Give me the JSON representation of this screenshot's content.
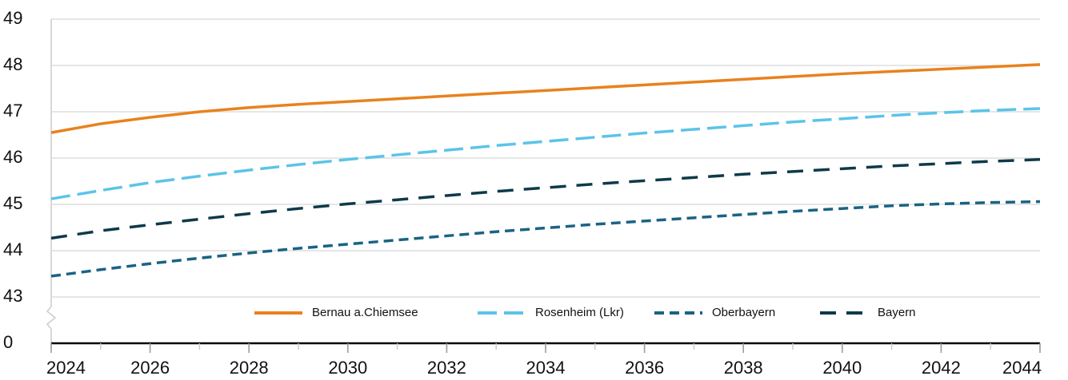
{
  "chart_data": {
    "type": "line",
    "x": [
      2024,
      2025,
      2026,
      2027,
      2028,
      2029,
      2030,
      2031,
      2032,
      2033,
      2034,
      2035,
      2036,
      2037,
      2038,
      2039,
      2040,
      2041,
      2042,
      2043,
      2044
    ],
    "series": [
      {
        "name": "Bernau a.Chiemsee",
        "color": "#e8821e",
        "dash": "solid",
        "values": [
          46.55,
          46.74,
          46.88,
          47.0,
          47.09,
          47.16,
          47.22,
          47.28,
          47.34,
          47.4,
          47.46,
          47.52,
          47.58,
          47.64,
          47.7,
          47.76,
          47.82,
          47.87,
          47.92,
          47.97,
          48.02
        ]
      },
      {
        "name": "Rosenheim (Lkr)",
        "color": "#5bc4e8",
        "dash": "long",
        "values": [
          45.12,
          45.3,
          45.47,
          45.61,
          45.74,
          45.86,
          45.97,
          46.07,
          46.17,
          46.27,
          46.36,
          46.45,
          46.54,
          46.62,
          46.7,
          46.78,
          46.85,
          46.92,
          46.98,
          47.03,
          47.07
        ]
      },
      {
        "name": "Oberbayern",
        "color": "#1a6384",
        "dash": "short",
        "values": [
          43.45,
          43.59,
          43.72,
          43.84,
          43.95,
          44.05,
          44.14,
          44.23,
          44.32,
          44.41,
          44.49,
          44.57,
          44.64,
          44.71,
          44.78,
          44.85,
          44.91,
          44.97,
          45.01,
          45.04,
          45.06
        ]
      },
      {
        "name": "Bayern",
        "color": "#0e3a4a",
        "dash": "medium",
        "values": [
          44.27,
          44.43,
          44.56,
          44.68,
          44.8,
          44.91,
          45.01,
          45.1,
          45.19,
          45.28,
          45.36,
          45.44,
          45.51,
          45.58,
          45.65,
          45.71,
          45.77,
          45.83,
          45.88,
          45.93,
          45.97
        ]
      }
    ],
    "xlim": [
      2024,
      2044
    ],
    "xticks": [
      2024,
      2026,
      2028,
      2030,
      2032,
      2034,
      2036,
      2038,
      2040,
      2042,
      2044
    ],
    "ylim": [
      0,
      49
    ],
    "ybreak": [
      0,
      43
    ],
    "yticks": [
      0,
      43,
      44,
      45,
      46,
      47,
      48,
      49
    ],
    "grid": true,
    "legend": "bottom"
  }
}
